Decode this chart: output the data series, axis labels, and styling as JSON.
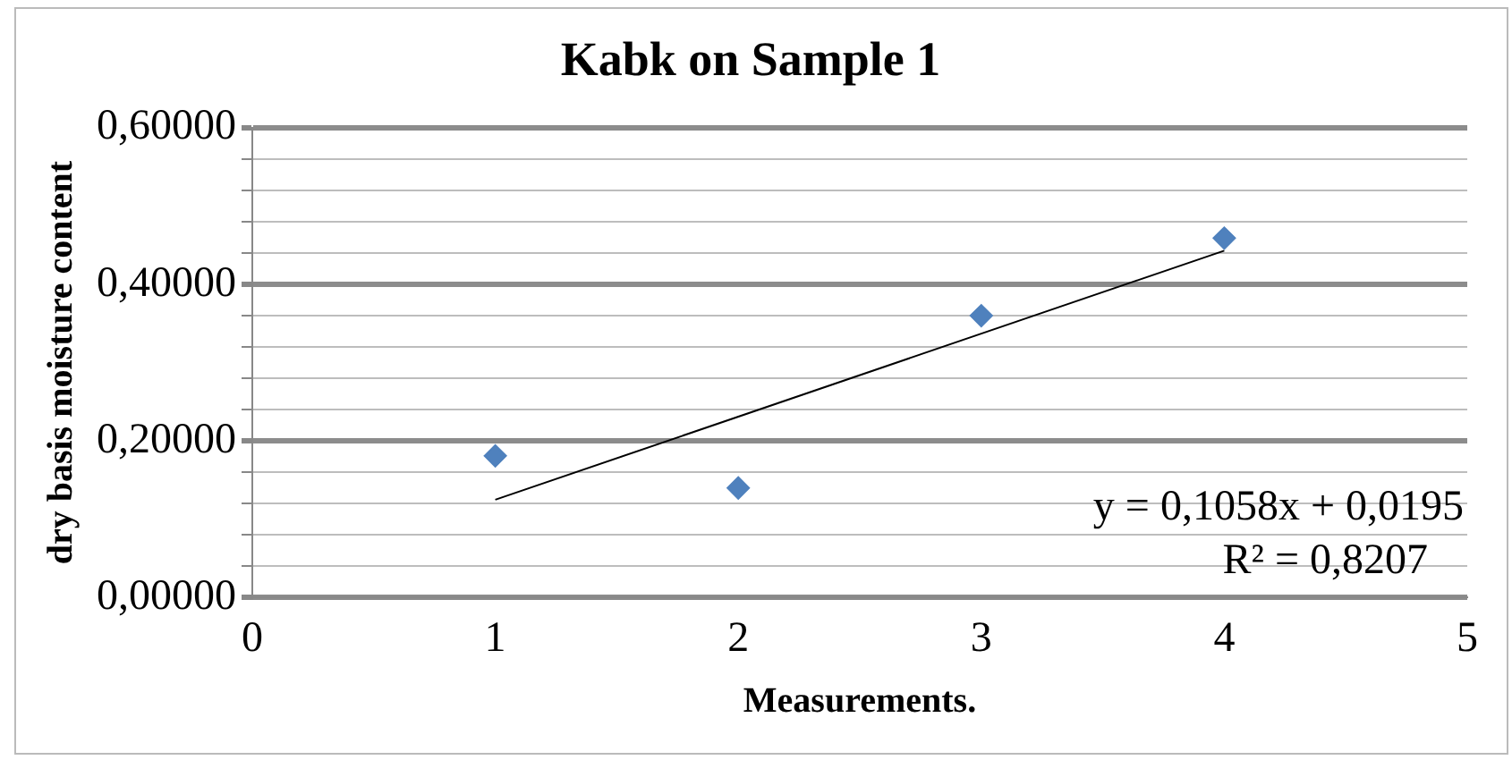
{
  "chart_data": {
    "type": "scatter",
    "title": "Kabk on Sample 1",
    "xlabel": "Measurements.",
    "ylabel": "dry basis moisture content",
    "series": [
      {
        "color": "#4f81bd",
        "x": [
          1,
          2,
          3,
          4
        ],
        "values": [
          0.181,
          0.14,
          0.36,
          0.459
        ],
        "marker": "diamond"
      },
      {
        "type": "line",
        "color": "#000000",
        "x": [
          1,
          4
        ],
        "values": [
          0.125,
          0.443
        ],
        "marker": "none"
      }
    ],
    "xlim": [
      0,
      5
    ],
    "xticks": [
      0,
      1,
      2,
      3,
      4,
      5
    ],
    "ylim": [
      0,
      0.6
    ],
    "yticks": [
      {
        "value": 0,
        "label": "0,00000"
      },
      {
        "value": 0.04,
        "label": null
      },
      {
        "value": 0.08,
        "label": null
      },
      {
        "value": 0.12,
        "label": null
      },
      {
        "value": 0.16,
        "label": null
      },
      {
        "value": 0.2,
        "label": "0,20000"
      },
      {
        "value": 0.24,
        "label": null
      },
      {
        "value": 0.28,
        "label": null
      },
      {
        "value": 0.32,
        "label": null
      },
      {
        "value": 0.36,
        "label": null
      },
      {
        "value": 0.4,
        "label": "0,40000"
      },
      {
        "value": 0.44,
        "label": null
      },
      {
        "value": 0.48,
        "label": null
      },
      {
        "value": 0.52,
        "label": null
      },
      {
        "value": 0.56,
        "label": null
      },
      {
        "value": 0.6,
        "label": "0,60000"
      }
    ],
    "grid": "y",
    "legend": false,
    "annotations": [
      "y = 0,1058x + 0,0195",
      "R² = 0,8207"
    ]
  }
}
